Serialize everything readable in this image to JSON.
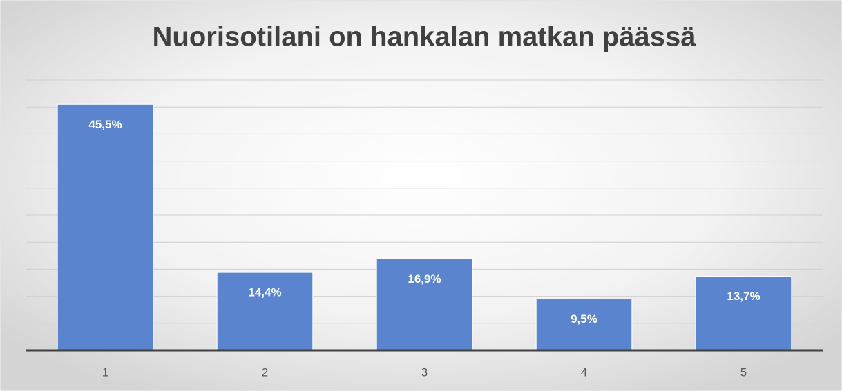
{
  "chart_data": {
    "type": "bar",
    "title": "Nuorisotilani on hankalan matkan päässä",
    "categories": [
      "1",
      "2",
      "3",
      "4",
      "5"
    ],
    "values": [
      45.5,
      14.4,
      16.9,
      9.5,
      13.7
    ],
    "value_labels": [
      "45,5%",
      "14,4%",
      "16,9%",
      "9,5%",
      "13,7%"
    ],
    "color": "#5b84cf",
    "ylim": [
      0,
      50
    ],
    "yticks": [
      0,
      5,
      10,
      15,
      20,
      25,
      30,
      35,
      40,
      45,
      50
    ],
    "grid": true
  }
}
